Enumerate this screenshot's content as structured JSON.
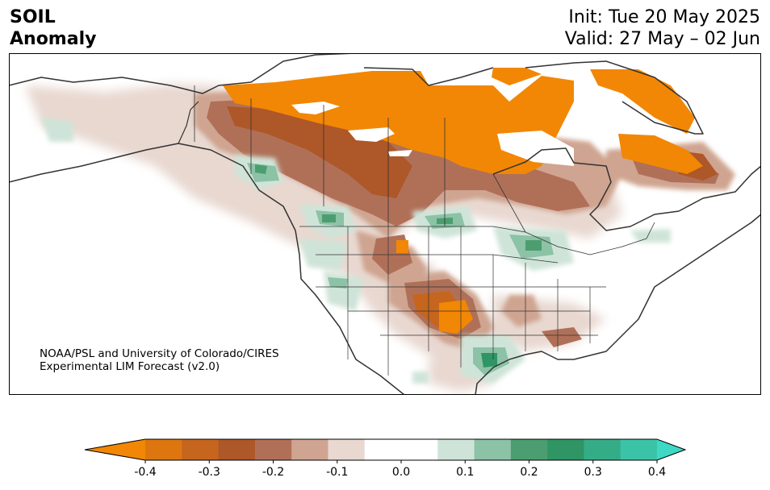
{
  "header": {
    "variable": "SOIL",
    "field": "Anomaly",
    "init": "Init: Tue 20 May 2025",
    "valid": "Valid: 27 May – 02 Jun"
  },
  "credit": {
    "line1": "NOAA/PSL and University of Colorado/CIRES",
    "line2": "Experimental LIM Forecast (v2.0)"
  },
  "colorbar": {
    "colors": [
      "#f28705",
      "#dd760f",
      "#c6651d",
      "#ae5728",
      "#b07058",
      "#cfa490",
      "#e8d8d0",
      "#ffffff",
      "#ffffff",
      "#cfe4d8",
      "#8cc2a6",
      "#4c9e70",
      "#2f9565",
      "#34ad86",
      "#3bc3a7",
      "#3ed8c5"
    ],
    "tick_labels": [
      "-0.4",
      "-0.3",
      "-0.2",
      "-0.1",
      "0.0",
      "0.1",
      "0.2",
      "0.3",
      "0.4"
    ],
    "range": [
      -0.4,
      0.4
    ],
    "extend": "both"
  },
  "map": {
    "region": "North America",
    "projection": "Lambert conformal",
    "palette": {
      "dry_strong": "#f28705",
      "dry_mid": "#c6651d",
      "dry_deep": "#ae5728",
      "dry_brown": "#b07058",
      "dry_light": "#cfa490",
      "dry_faint": "#e8d8d0",
      "wet_faint": "#cfe4d8",
      "wet_light": "#8cc2a6",
      "wet_mid": "#4c9e70",
      "wet_strong": "#2f9565",
      "coast": "#333333"
    }
  }
}
